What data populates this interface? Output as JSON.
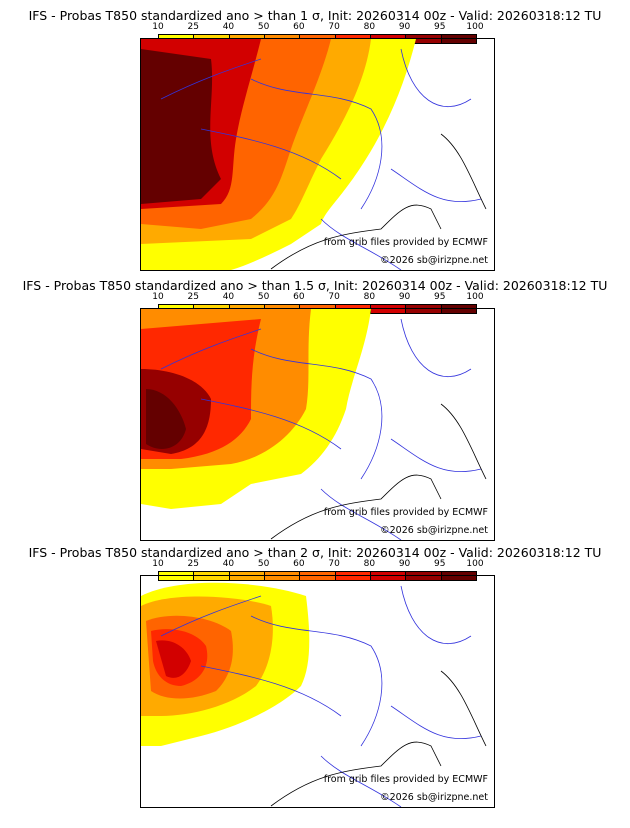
{
  "colorbar": {
    "ticks": [
      "10",
      "25",
      "40",
      "50",
      "60",
      "70",
      "80",
      "90",
      "95",
      "100"
    ],
    "colors": [
      "#ffff00",
      "#ffd700",
      "#ffaa00",
      "#ff8c00",
      "#ff6400",
      "#ff2800",
      "#d20000",
      "#960000",
      "#640000"
    ]
  },
  "credits": {
    "source": "from grib files provided by ECMWF",
    "copyright": "©2026 sb@irizpne.net"
  },
  "panels": [
    {
      "title": "IFS - Probas T850  standardized ano > than 1 σ, Init: 20260314 00z - Valid: 20260318:12 TU",
      "level": 1
    },
    {
      "title": "IFS - Probas T850  standardized ano > than 1.5 σ, Init: 20260314 00z - Valid: 20260318:12 TU",
      "level": 2
    },
    {
      "title": "IFS - Probas T850  standardized ano > than 2 σ, Init: 20260314 00z - Valid: 20260318:12 TU",
      "level": 3
    }
  ]
}
